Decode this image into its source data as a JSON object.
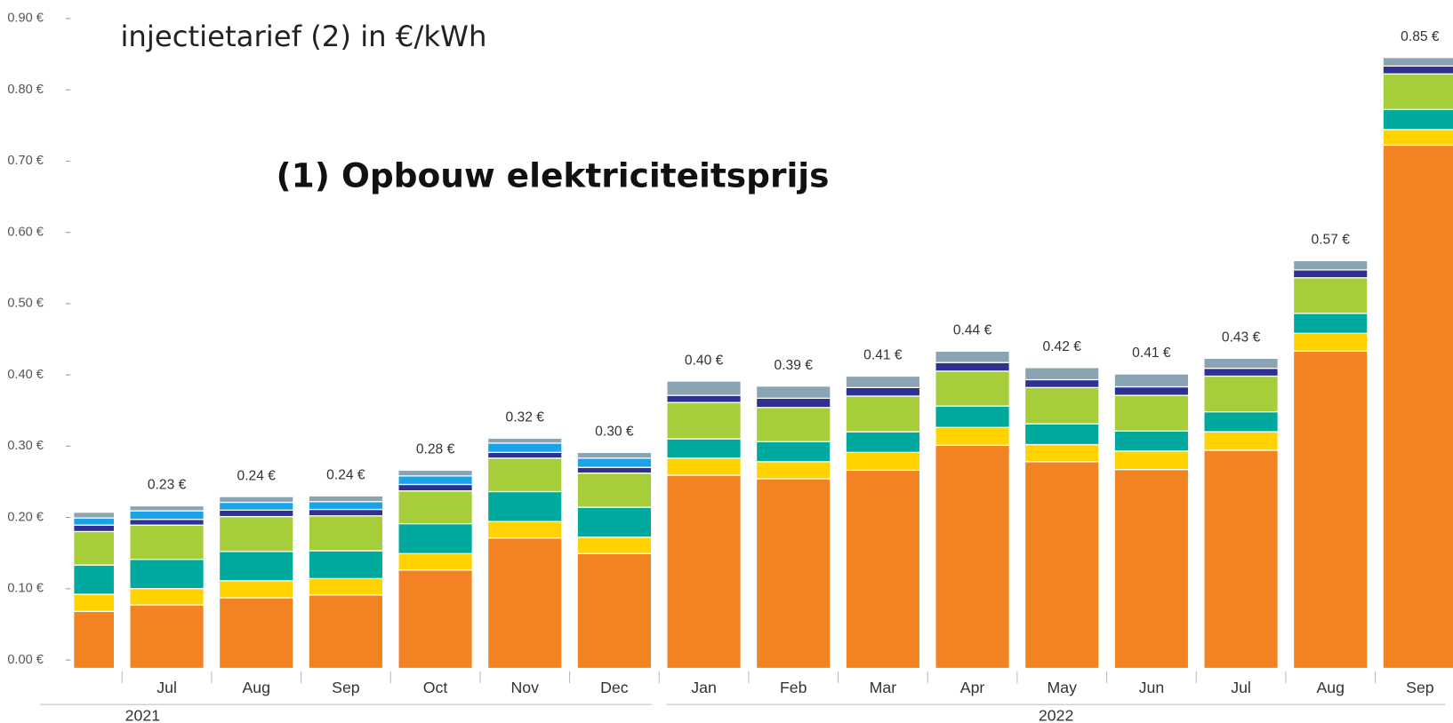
{
  "chart_data": {
    "type": "stacked-bar",
    "title": "injectietarief (2) in €/kWh",
    "subtitle": "(1) Opbouw elektriciteitsprijs",
    "categories": [
      null,
      "Jul",
      "Aug",
      "Sep",
      "Oct",
      "Nov",
      "Dec",
      "Jan",
      "Feb",
      "Mar",
      "Apr",
      "May",
      "Jun",
      "Jul",
      "Aug",
      "Sep"
    ],
    "groups": [
      {
        "label": "2021",
        "start": 0,
        "end": 6
      },
      {
        "label": "2022",
        "start": 7,
        "end": 15
      }
    ],
    "series": [
      {
        "color": "#f28322",
        "values": [
          0.08,
          0.089,
          0.099,
          0.103,
          0.138,
          0.183,
          0.161,
          0.271,
          0.266,
          0.278,
          0.313,
          0.29,
          0.279,
          0.306,
          0.445,
          0.734
        ]
      },
      {
        "color": "#ffd200",
        "values": [
          0.024,
          0.023,
          0.024,
          0.023,
          0.023,
          0.023,
          0.023,
          0.024,
          0.024,
          0.025,
          0.025,
          0.024,
          0.026,
          0.026,
          0.025,
          0.022
        ]
      },
      {
        "color": "#00a99d",
        "values": [
          0.041,
          0.041,
          0.041,
          0.039,
          0.042,
          0.042,
          0.042,
          0.027,
          0.028,
          0.029,
          0.03,
          0.029,
          0.028,
          0.028,
          0.028,
          0.028
        ]
      },
      {
        "color": "#a6cd3a",
        "values": [
          0.047,
          0.048,
          0.049,
          0.049,
          0.046,
          0.047,
          0.048,
          0.051,
          0.048,
          0.05,
          0.049,
          0.051,
          0.05,
          0.05,
          0.05,
          0.05
        ]
      },
      {
        "color": "#2e3192",
        "values": [
          0.009,
          0.008,
          0.009,
          0.009,
          0.009,
          0.008,
          0.008,
          0.01,
          0.013,
          0.012,
          0.012,
          0.011,
          0.012,
          0.011,
          0.011,
          0.011
        ]
      },
      {
        "color": "#1aa3e8",
        "values": [
          0.01,
          0.012,
          0.011,
          0.011,
          0.012,
          0.013,
          0.013,
          0,
          0,
          0,
          0,
          0,
          0,
          0,
          0,
          0
        ]
      },
      {
        "color": "#8aa4b3",
        "values": [
          0.008,
          0.007,
          0.008,
          0.008,
          0.008,
          0.007,
          0.008,
          0.02,
          0.017,
          0.016,
          0.016,
          0.017,
          0.018,
          0.014,
          0.013,
          0.012
        ]
      }
    ],
    "totals": [
      null,
      0.23,
      0.24,
      0.24,
      0.28,
      0.32,
      0.3,
      0.4,
      0.39,
      0.41,
      0.44,
      0.42,
      0.41,
      0.43,
      0.57,
      0.85
    ],
    "total_labels": [
      null,
      "0.23 €",
      "0.24 €",
      "0.24 €",
      "0.28 €",
      "0.32 €",
      "0.30 €",
      "0.40 €",
      "0.39 €",
      "0.41 €",
      "0.44 €",
      "0.42 €",
      "0.41 €",
      "0.43 €",
      "0.57 €",
      "0.85 €"
    ],
    "ylim": [
      0,
      0.9
    ],
    "yticks": [
      {
        "value": 0,
        "label": "0.00 €"
      },
      {
        "value": 0.1,
        "label": "0.10 €"
      },
      {
        "value": 0.2,
        "label": "0.20 €"
      },
      {
        "value": 0.3,
        "label": "0.30 €"
      },
      {
        "value": 0.4,
        "label": "0.40 €"
      },
      {
        "value": 0.5,
        "label": "0.50 €"
      },
      {
        "value": 0.6,
        "label": "0.60 €"
      },
      {
        "value": 0.7,
        "label": "0.70 €"
      },
      {
        "value": 0.8,
        "label": "0.80 €"
      },
      {
        "value": 0.9,
        "label": "0.90 €"
      }
    ]
  }
}
